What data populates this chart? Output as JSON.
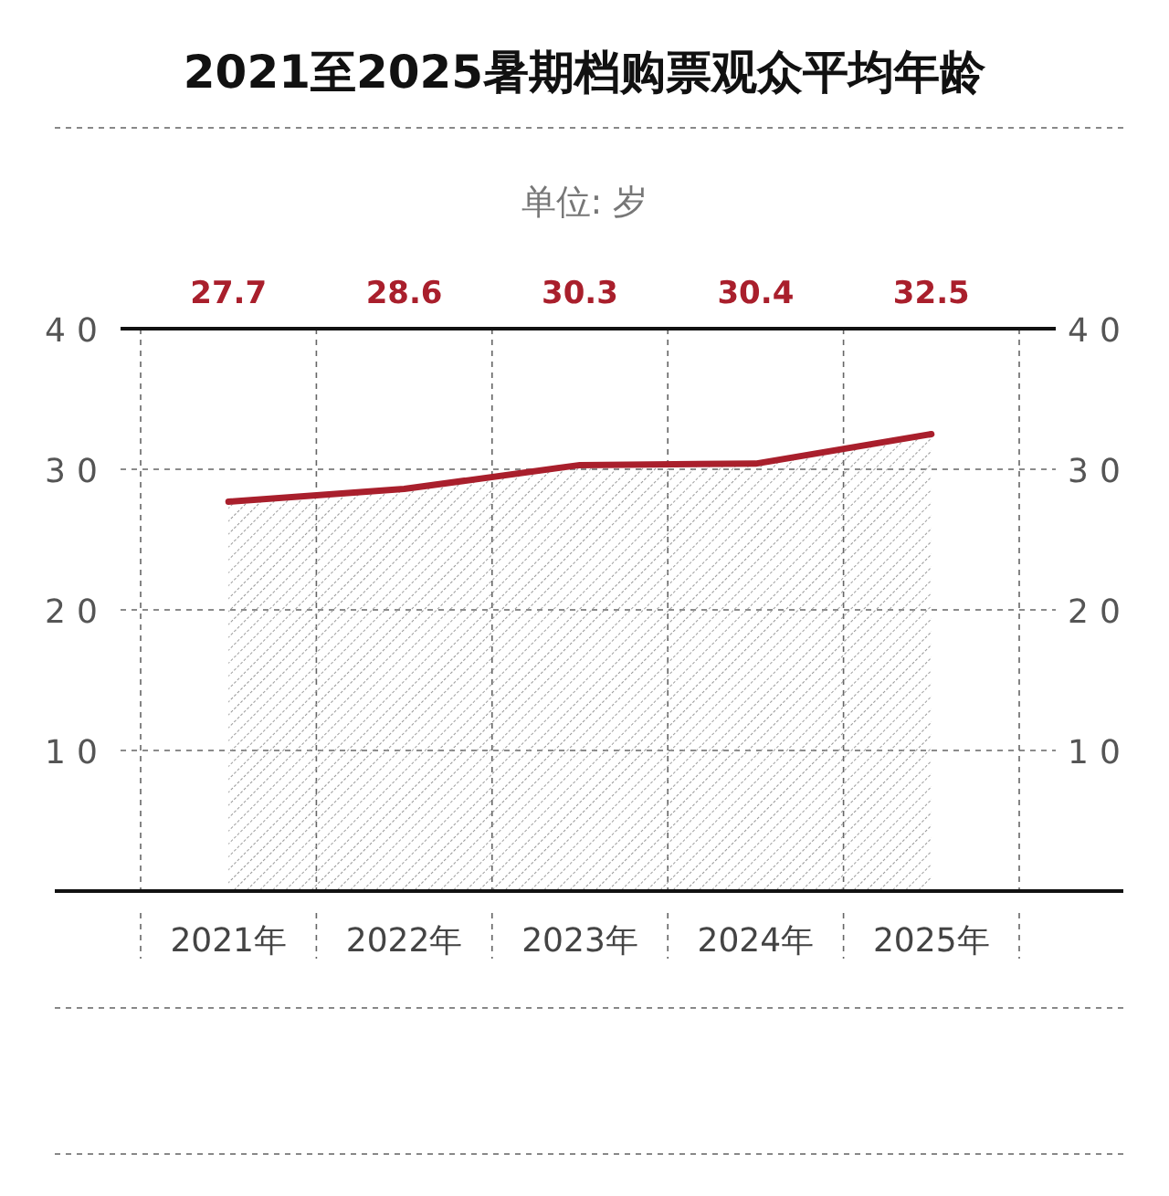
{
  "chart_data": {
    "type": "area",
    "title": "2021至2025暑期档购票观众平均年龄",
    "subtitle": "单位: 岁",
    "categories": [
      "2021年",
      "2022年",
      "2023年",
      "2024年",
      "2025年"
    ],
    "values": [
      27.7,
      28.6,
      30.3,
      30.4,
      32.5
    ],
    "color": "#a91f2c",
    "annotations": [
      "27.7",
      "28.6",
      "30.3",
      "30.4",
      "32.5"
    ],
    "ylim": [
      0,
      40
    ],
    "yticks": [
      10,
      20,
      30,
      40
    ],
    "y2lim": [
      0,
      40
    ],
    "y2ticks": [
      10,
      20,
      30,
      40
    ],
    "grid": "y",
    "marker": "none",
    "line_style": "solid"
  }
}
